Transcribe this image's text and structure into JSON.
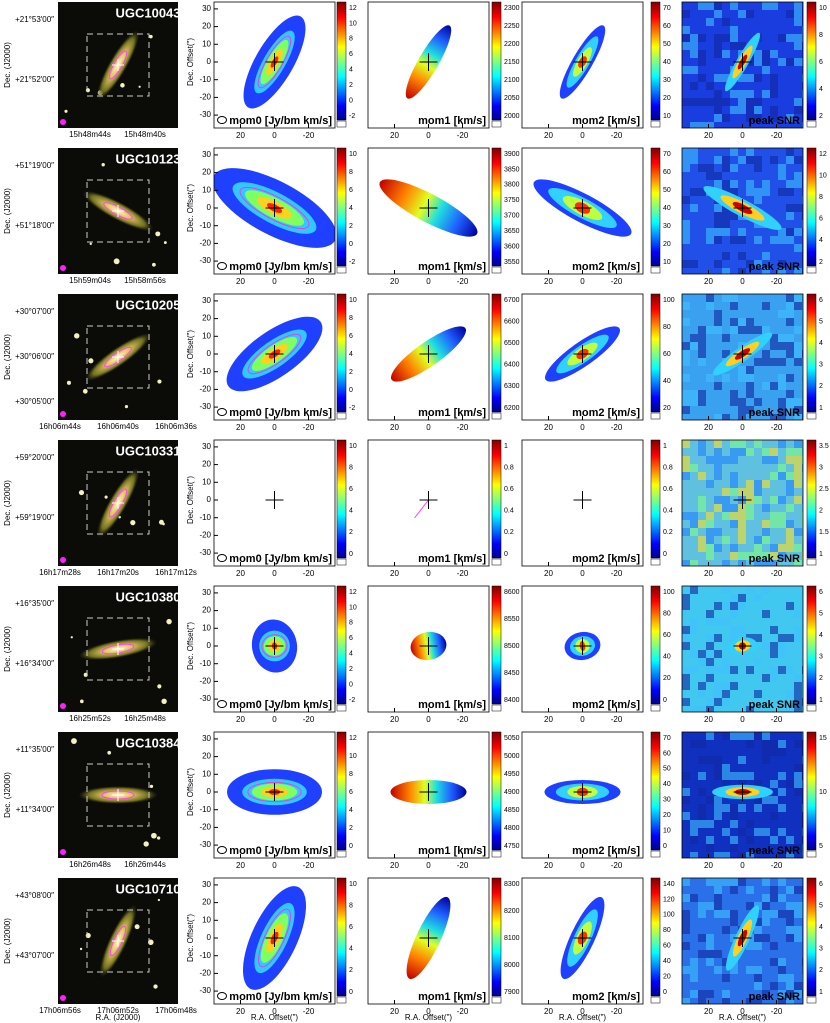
{
  "axis_labels": {
    "dec_j2000": "Dec. (J2000)",
    "dec_offset": "Dec. Offset(\")",
    "ra_offset": "R.A. Offset(\")",
    "ra_j2000": "R.A. (J2000)"
  },
  "panel_labels": [
    "mom0 [Jy/bm km/s]",
    "mom1 [km/s]",
    "mom2 [km/s]",
    "peak SNR"
  ],
  "offset_xticks": [
    20,
    0,
    -20
  ],
  "offset_yticks": [
    30,
    20,
    10,
    0,
    -10,
    -20,
    -30
  ],
  "rows": [
    {
      "name": "UGC10043",
      "dec_ticks": [
        "+21°53′00″",
        "+21°52′00″"
      ],
      "ra_ticks": [
        "15h48m44s",
        "15h48m40s"
      ],
      "colorbars": [
        [
          12,
          10,
          8,
          6,
          4,
          2,
          0,
          -2
        ],
        [
          2300,
          2250,
          2200,
          2150,
          2100,
          2050,
          2000
        ],
        [
          70,
          60,
          50,
          40,
          30,
          20,
          10
        ],
        [
          10,
          8,
          6,
          4,
          2
        ]
      ]
    },
    {
      "name": "UGC10123",
      "dec_ticks": [
        "+51°19′00″",
        "+51°18′00″"
      ],
      "ra_ticks": [
        "15h59m04s",
        "15h58m56s"
      ],
      "colorbars": [
        [
          10,
          8,
          6,
          4,
          2,
          0,
          -2
        ],
        [
          3900,
          3850,
          3800,
          3750,
          3700,
          3650,
          3600,
          3550
        ],
        [
          70,
          60,
          50,
          40,
          30,
          20,
          10
        ],
        [
          12,
          10,
          8,
          6,
          4,
          2
        ]
      ]
    },
    {
      "name": "UGC10205",
      "dec_ticks": [
        "+30°07′00″",
        "+30°06′00″",
        "+30°05′00″"
      ],
      "ra_ticks": [
        "16h06m44s",
        "16h06m40s",
        "16h06m36s"
      ],
      "colorbars": [
        [
          10,
          8,
          6,
          4,
          2,
          0,
          -2
        ],
        [
          6700,
          6600,
          6500,
          6400,
          6300,
          6200
        ],
        [
          100,
          80,
          60,
          40,
          20
        ],
        [
          6,
          5,
          4,
          3,
          2,
          1
        ]
      ]
    },
    {
      "name": "UGC10331",
      "dec_ticks": [
        "+59°20′00″",
        "+59°19′00″"
      ],
      "ra_ticks": [
        "16h17m28s",
        "16h17m20s",
        "16h17m12s"
      ],
      "colorbars": [
        [
          10,
          8,
          6,
          4,
          2,
          0
        ],
        [
          1,
          0.8,
          0.6,
          0.4,
          0.2,
          0
        ],
        [
          1,
          0.8,
          0.6,
          0.4,
          0.2,
          0
        ],
        [
          3.5,
          3,
          2.5,
          2,
          1.5,
          1
        ]
      ]
    },
    {
      "name": "UGC10380",
      "dec_ticks": [
        "+16°35′00″",
        "+16°34′00″"
      ],
      "ra_ticks": [
        "16h25m52s",
        "16h25m48s"
      ],
      "colorbars": [
        [
          12,
          10,
          8,
          6,
          4,
          2,
          0,
          -2
        ],
        [
          8600,
          8550,
          8500,
          8450,
          8400
        ],
        [
          100,
          80,
          60,
          40,
          20,
          0
        ],
        [
          6,
          5,
          4,
          3,
          2,
          1
        ]
      ]
    },
    {
      "name": "UGC10384",
      "dec_ticks": [
        "+11°35′00″",
        "+11°34′00″"
      ],
      "ra_ticks": [
        "16h26m48s",
        "16h26m44s"
      ],
      "colorbars": [
        [
          12,
          10,
          8,
          6,
          4,
          2,
          0
        ],
        [
          5050,
          5000,
          4950,
          4900,
          4850,
          4800,
          4750
        ],
        [
          70,
          60,
          50,
          40,
          30,
          20,
          10,
          0
        ],
        [
          15,
          10,
          5
        ]
      ]
    },
    {
      "name": "UGC10710",
      "dec_ticks": [
        "+43°08′00″",
        "+43°07′00″"
      ],
      "ra_ticks": [
        "17h06m56s",
        "17h06m52s",
        "17h06m48s"
      ],
      "colorbars": [
        [
          10,
          8,
          6,
          4,
          2,
          0
        ],
        [
          8300,
          8200,
          8100,
          8000,
          7900
        ],
        [
          140,
          120,
          100,
          80,
          60,
          40,
          20,
          0
        ],
        [
          6,
          5,
          4,
          3,
          2,
          1
        ]
      ]
    }
  ]
}
